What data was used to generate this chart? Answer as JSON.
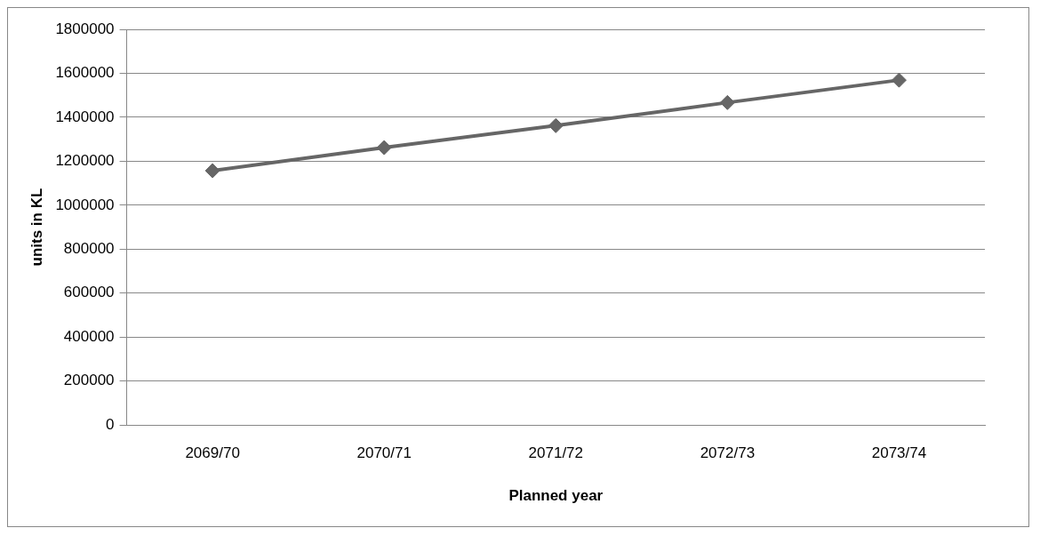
{
  "chart_data": {
    "type": "line",
    "xlabel": "Planned year",
    "ylabel": "units in KL",
    "categories": [
      "2069/70",
      "2070/71",
      "2071/72",
      "2072/73",
      "2073/74"
    ],
    "series": [
      {
        "color": "#666666",
        "values": [
          1157000,
          1262000,
          1362000,
          1467000,
          1569000
        ]
      }
    ],
    "ylim": [
      0,
      1800000
    ],
    "yticks": [
      0,
      200000,
      400000,
      600000,
      800000,
      1000000,
      1200000,
      1400000,
      1600000,
      1800000
    ],
    "grid": "y",
    "legend": false,
    "marker": "diamond",
    "line_style": "solid"
  }
}
